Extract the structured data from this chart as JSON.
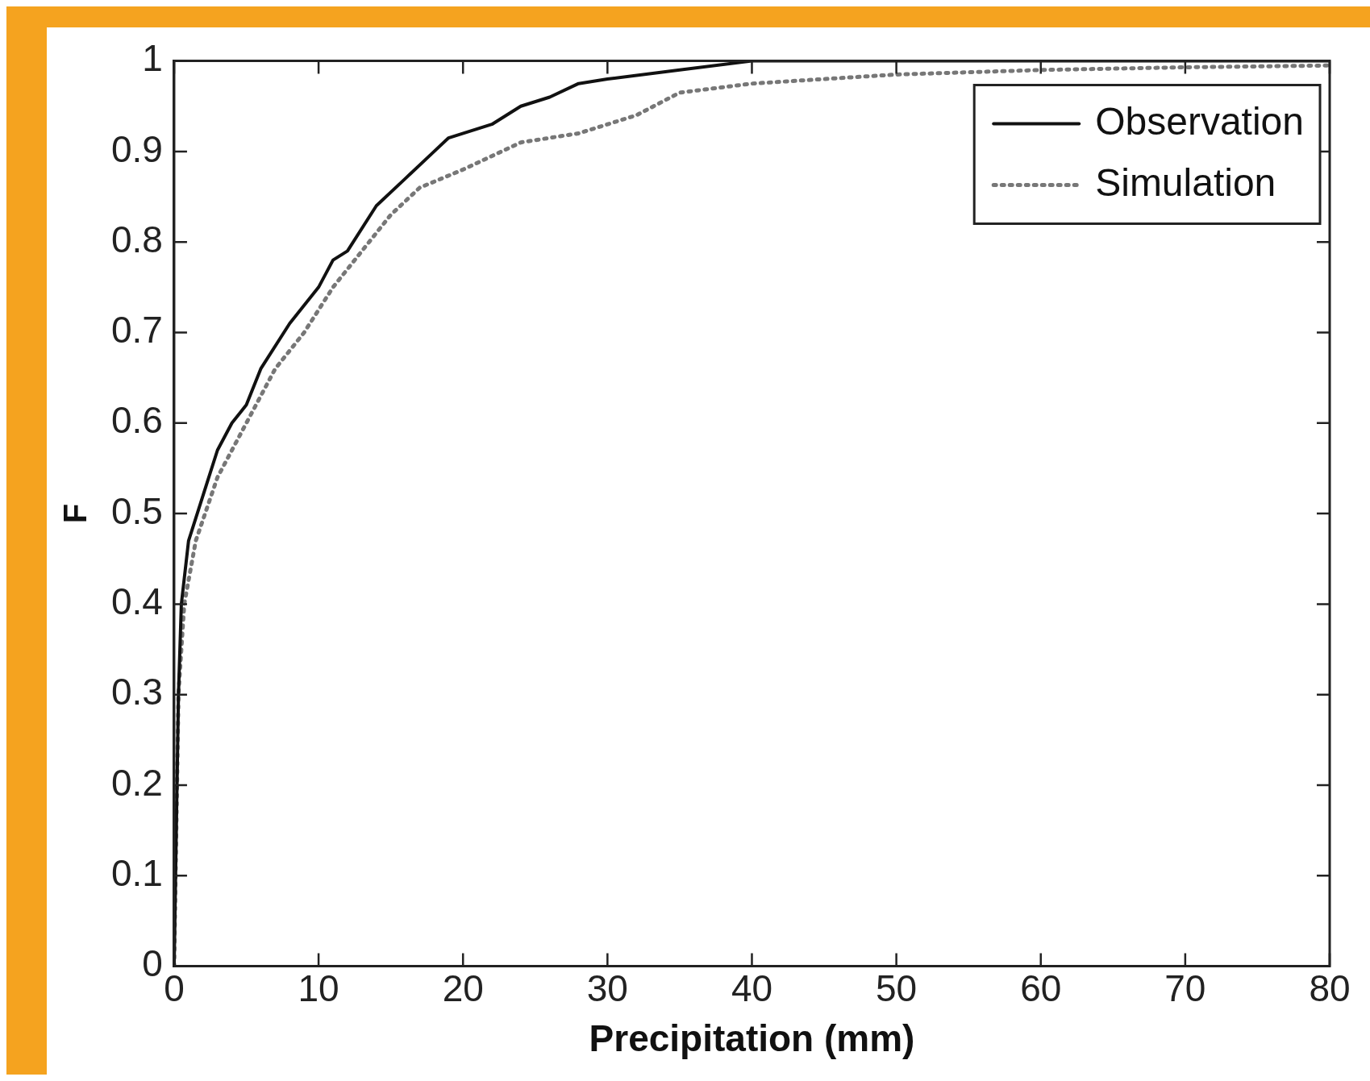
{
  "chart_data": {
    "type": "line",
    "xlabel": "Precipitation (mm)",
    "ylabel": "F",
    "xlim": [
      0,
      80
    ],
    "xticks": [
      0,
      10,
      20,
      30,
      40,
      50,
      60,
      70,
      80
    ],
    "ylim": [
      0,
      1
    ],
    "yticks": [
      0,
      0.1,
      0.2,
      0.3,
      0.4,
      0.5,
      0.6,
      0.7,
      0.8,
      0.9,
      1
    ],
    "grid": false,
    "legend": "top right",
    "marker": "none",
    "series": [
      {
        "name": "Observation",
        "color": "#111111",
        "line_style": "solid",
        "x": [
          0,
          0.3,
          0.5,
          1,
          2,
          3,
          4,
          5,
          6,
          8,
          10,
          11,
          12,
          14,
          16,
          18,
          19,
          22,
          24,
          26,
          28,
          30,
          35,
          40,
          80
        ],
        "values": [
          0,
          0.3,
          0.4,
          0.47,
          0.52,
          0.57,
          0.6,
          0.62,
          0.66,
          0.71,
          0.75,
          0.78,
          0.79,
          0.84,
          0.87,
          0.9,
          0.915,
          0.93,
          0.95,
          0.96,
          0.975,
          0.98,
          0.99,
          1,
          1
        ]
      },
      {
        "name": "Simulation",
        "color": "#777777",
        "line_style": "dotted",
        "x": [
          0,
          0.3,
          0.7,
          1.5,
          3,
          5,
          7,
          9,
          11,
          13,
          15,
          17,
          20,
          24,
          28,
          32,
          35,
          40,
          45,
          50,
          60,
          70,
          80
        ],
        "values": [
          0,
          0.3,
          0.4,
          0.47,
          0.54,
          0.6,
          0.66,
          0.7,
          0.75,
          0.79,
          0.83,
          0.86,
          0.88,
          0.91,
          0.92,
          0.94,
          0.965,
          0.975,
          0.98,
          0.985,
          0.99,
          0.993,
          0.995
        ]
      }
    ]
  }
}
